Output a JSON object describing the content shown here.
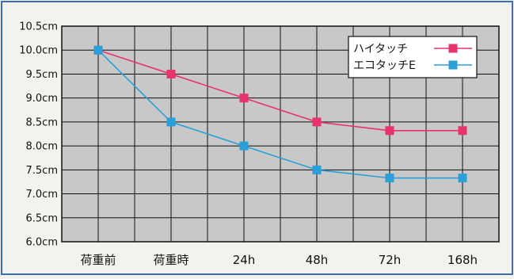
{
  "chart_data": {
    "type": "line",
    "categories": [
      "荷重前",
      "荷重時",
      "24h",
      "48h",
      "72h",
      "168h"
    ],
    "y_tick_labels": [
      "6.0cm",
      "6.5cm",
      "7.0cm",
      "7.5cm",
      "8.0cm",
      "8.5cm",
      "9.0cm",
      "9.5cm",
      "10.0cm",
      "10.5cm"
    ],
    "ylim": [
      6.0,
      10.5
    ],
    "series": [
      {
        "name": "ハイタッチ",
        "color": "#e8336d",
        "values": [
          10.0,
          9.5,
          9.0,
          8.5,
          8.32,
          8.32
        ]
      },
      {
        "name": "エコタッチE",
        "color": "#2a9fd8",
        "values": [
          10.0,
          8.5,
          8.0,
          7.5,
          7.33,
          7.33
        ]
      }
    ],
    "grid": true,
    "legend": "top-right",
    "colors": {
      "plot_background": "#c8c8c8",
      "grid": "#111111",
      "page_background": "#f4f2ec"
    }
  }
}
